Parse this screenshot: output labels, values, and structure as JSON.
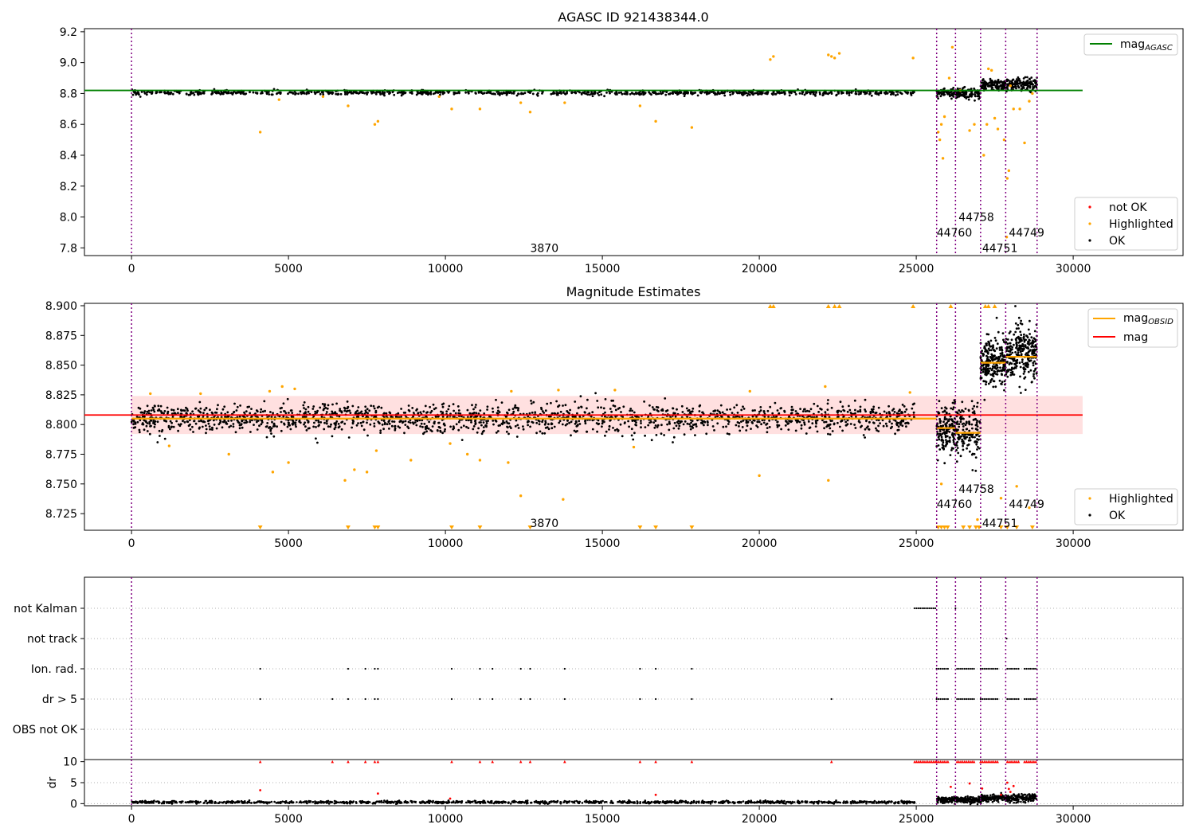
{
  "chart_data": [
    {
      "type": "scatter",
      "title": "AGASC ID 921438344.0",
      "xlabel": "",
      "ylabel": "",
      "xlim": [
        -1500,
        33500
      ],
      "ylim": [
        7.75,
        9.22
      ],
      "x_ticks": [
        0,
        5000,
        10000,
        15000,
        20000,
        25000,
        30000
      ],
      "y_ticks": [
        7.8,
        8.0,
        8.2,
        8.4,
        8.6,
        8.8,
        9.0,
        9.2
      ],
      "y_tick_labels": [
        "7.8",
        "8.0",
        "8.2",
        "8.4",
        "8.6",
        "8.8",
        "9.0",
        "9.2"
      ],
      "reference_line": {
        "name": "mag",
        "subscript": "AGASC",
        "y": 8.82,
        "x_range": [
          -1500,
          30300
        ],
        "color": "#008000"
      },
      "observation_boundaries": [
        0,
        25650,
        26250,
        27050,
        27850,
        28850
      ],
      "observation_labels": [
        {
          "text": "3870",
          "x": 12700,
          "y": 7.8
        },
        {
          "text": "44760",
          "x": 25650,
          "y": 7.9
        },
        {
          "text": "44758",
          "x": 26350,
          "y": 8.0
        },
        {
          "text": "44751",
          "x": 27100,
          "y": 7.8
        },
        {
          "text": "44749",
          "x": 27950,
          "y": 7.9
        }
      ],
      "series": [
        {
          "name": "not OK",
          "color": "#ff0000",
          "marker": "point"
        },
        {
          "name": "Highlighted",
          "color": "#ffa500",
          "marker": "point"
        },
        {
          "name": "OK",
          "color": "#000000",
          "marker": "point"
        }
      ],
      "segments": [
        {
          "x": [
            0,
            24950
          ],
          "center": 8.805,
          "spread": 0.015,
          "density": 900
        },
        {
          "x": [
            25650,
            27050
          ],
          "center": 8.8,
          "spread": 0.035,
          "density": 160
        },
        {
          "x": [
            27050,
            27850
          ],
          "center": 8.855,
          "spread": 0.035,
          "density": 120
        },
        {
          "x": [
            27850,
            28850
          ],
          "center": 8.86,
          "spread": 0.04,
          "density": 140
        }
      ],
      "highlighted_points": [
        [
          4100,
          8.55
        ],
        [
          6900,
          8.72
        ],
        [
          7750,
          8.6
        ],
        [
          7850,
          8.62
        ],
        [
          10200,
          8.7
        ],
        [
          11100,
          8.7
        ],
        [
          12400,
          8.74
        ],
        [
          12700,
          8.68
        ],
        [
          13800,
          8.74
        ],
        [
          16200,
          8.72
        ],
        [
          16700,
          8.62
        ],
        [
          17850,
          8.58
        ],
        [
          20350,
          9.02
        ],
        [
          20450,
          9.04
        ],
        [
          22200,
          9.05
        ],
        [
          22300,
          9.04
        ],
        [
          22400,
          9.03
        ],
        [
          22550,
          9.06
        ],
        [
          24900,
          9.03
        ],
        [
          25700,
          8.55
        ],
        [
          25750,
          8.5
        ],
        [
          25800,
          8.6
        ],
        [
          25850,
          8.38
        ],
        [
          25900,
          8.65
        ],
        [
          26050,
          8.9
        ],
        [
          26150,
          9.1
        ],
        [
          26400,
          8.82
        ],
        [
          26700,
          8.56
        ],
        [
          26850,
          8.6
        ],
        [
          27150,
          8.4
        ],
        [
          27250,
          8.6
        ],
        [
          27300,
          8.96
        ],
        [
          27400,
          8.95
        ],
        [
          27500,
          8.64
        ],
        [
          27600,
          8.57
        ],
        [
          27800,
          8.5
        ],
        [
          27900,
          8.25
        ],
        [
          27950,
          8.3
        ],
        [
          28000,
          8.85
        ],
        [
          28100,
          8.7
        ],
        [
          28300,
          8.7
        ],
        [
          28450,
          8.48
        ],
        [
          28600,
          8.75
        ],
        [
          28700,
          8.8
        ],
        [
          27880,
          7.87
        ],
        [
          4700,
          8.76
        ],
        [
          6100,
          8.78
        ],
        [
          9800,
          8.78
        ]
      ],
      "legend": [
        {
          "position": "top-right",
          "entries": [
            "mag"
          ]
        },
        {
          "position": "bottom-right",
          "entries": [
            "not OK",
            "Highlighted",
            "OK"
          ]
        }
      ]
    },
    {
      "type": "scatter",
      "title": "Magnitude Estimates",
      "xlabel": "",
      "ylabel": "",
      "xlim": [
        -1500,
        33500
      ],
      "ylim": [
        8.711,
        8.902
      ],
      "x_ticks": [
        0,
        5000,
        10000,
        15000,
        20000,
        25000,
        30000
      ],
      "y_ticks": [
        8.725,
        8.75,
        8.775,
        8.8,
        8.825,
        8.85,
        8.875,
        8.9
      ],
      "y_tick_labels": [
        "8.725",
        "8.750",
        "8.775",
        "8.800",
        "8.825",
        "8.850",
        "8.875",
        "8.900"
      ],
      "mag_line": {
        "name": "mag",
        "y": 8.808,
        "band": [
          8.792,
          8.824
        ],
        "x_range": [
          -1500,
          30300
        ],
        "color": "#ff0000"
      },
      "obsid_mags": {
        "name": "mag",
        "subscript": "OBSID",
        "color": "#ffa500",
        "segments": [
          {
            "x": [
              0,
              25650
            ],
            "y": 8.805
          },
          {
            "x": [
              25650,
              26250
            ],
            "y": 8.797
          },
          {
            "x": [
              26250,
              27050
            ],
            "y": 8.793
          },
          {
            "x": [
              27050,
              27850
            ],
            "y": 8.852
          },
          {
            "x": [
              27850,
              28850
            ],
            "y": 8.857
          }
        ]
      },
      "observation_boundaries": [
        0,
        25650,
        26250,
        27050,
        27850,
        28850
      ],
      "observation_labels": [
        {
          "text": "3870",
          "x": 12700,
          "y": 8.717
        },
        {
          "text": "44760",
          "x": 25650,
          "y": 8.733
        },
        {
          "text": "44758",
          "x": 26350,
          "y": 8.746
        },
        {
          "text": "44751",
          "x": 27100,
          "y": 8.717
        },
        {
          "text": "44749",
          "x": 27950,
          "y": 8.733
        }
      ],
      "segments": [
        {
          "x": [
            0,
            24950
          ],
          "center": 8.805,
          "spread": 0.012,
          "density": 1800
        },
        {
          "x": [
            25650,
            27050
          ],
          "center": 8.795,
          "spread": 0.022,
          "density": 320
        },
        {
          "x": [
            27050,
            27850
          ],
          "center": 8.852,
          "spread": 0.02,
          "density": 240
        },
        {
          "x": [
            27850,
            28850
          ],
          "center": 8.86,
          "spread": 0.024,
          "density": 280
        }
      ],
      "highlighted_points": [
        [
          4500,
          8.76
        ],
        [
          5000,
          8.768
        ],
        [
          6800,
          8.753
        ],
        [
          7100,
          8.762
        ],
        [
          7500,
          8.76
        ],
        [
          7800,
          8.778
        ],
        [
          8900,
          8.77
        ],
        [
          10150,
          8.784
        ],
        [
          10700,
          8.775
        ],
        [
          11100,
          8.77
        ],
        [
          12000,
          8.768
        ],
        [
          12400,
          8.74
        ],
        [
          13750,
          8.737
        ],
        [
          16000,
          8.781
        ],
        [
          20000,
          8.757
        ],
        [
          22200,
          8.753
        ],
        [
          25800,
          8.75
        ],
        [
          26950,
          8.72
        ],
        [
          27700,
          8.738
        ],
        [
          28200,
          8.748
        ],
        [
          28600,
          8.73
        ],
        [
          1200,
          8.782
        ],
        [
          3100,
          8.775
        ],
        [
          600,
          8.826
        ],
        [
          2200,
          8.826
        ],
        [
          4400,
          8.828
        ],
        [
          4800,
          8.832
        ],
        [
          5200,
          8.83
        ],
        [
          12100,
          8.828
        ],
        [
          13600,
          8.829
        ],
        [
          15400,
          8.829
        ],
        [
          19700,
          8.828
        ],
        [
          22100,
          8.832
        ],
        [
          24800,
          8.827
        ]
      ],
      "clipped_high": [
        20350,
        20450,
        22200,
        22400,
        22550,
        24900,
        26100,
        27200,
        27300,
        27500
      ],
      "clipped_low": [
        4100,
        6900,
        7750,
        7850,
        10200,
        11100,
        12700,
        16200,
        16700,
        17850,
        25700,
        25800,
        25900,
        26000,
        26500,
        26700,
        26900,
        27000,
        27700,
        27900,
        28200,
        28700
      ],
      "legend": [
        {
          "position": "top-right",
          "entries": [
            "mag",
            "mag"
          ]
        },
        {
          "position": "bottom-right",
          "entries": [
            "Highlighted",
            "OK"
          ]
        }
      ]
    },
    {
      "type": "scatter",
      "title": "",
      "xlabel": "",
      "ylabel": "",
      "xlim": [
        -1500,
        33500
      ],
      "flag_rows": [
        "not Kalman",
        "not track",
        "Ion. rad.",
        "dr > 5",
        "OBS not OK"
      ],
      "observation_boundaries": [
        0,
        25650,
        26250,
        27050,
        27850,
        28850
      ],
      "flags": {
        "not Kalman": {
          "ranges": [
            [
              24950,
              25650
            ]
          ],
          "points": [
            26250
          ]
        },
        "not track": {
          "ranges": [],
          "points": [
            27880
          ]
        },
        "Ion. rad.": {
          "ranges": [
            [
              25650,
              26050
            ],
            [
              26300,
              26850
            ],
            [
              27050,
              27600
            ],
            [
              27900,
              28300
            ],
            [
              28450,
              28850
            ]
          ],
          "points": [
            4100,
            6900,
            7450,
            7750,
            7850,
            10200,
            11100,
            11500,
            12400,
            12700,
            13800,
            16200,
            16700,
            17850
          ]
        },
        "dr > 5": {
          "ranges": [
            [
              25650,
              26050
            ],
            [
              26300,
              26850
            ],
            [
              27050,
              27600
            ],
            [
              27900,
              28300
            ],
            [
              28450,
              28850
            ]
          ],
          "points": [
            4100,
            6400,
            6900,
            7450,
            7750,
            7850,
            10200,
            11100,
            11500,
            12400,
            12700,
            13800,
            16200,
            16700,
            17850,
            22300
          ]
        },
        "OBS not OK": {
          "ranges": [],
          "points": []
        }
      }
    },
    {
      "type": "scatter",
      "title": "",
      "xlabel": "",
      "ylabel": "dr",
      "xlim": [
        -1500,
        33500
      ],
      "ylim": [
        -0.5,
        10.5
      ],
      "x_ticks": [
        0,
        5000,
        10000,
        15000,
        20000,
        25000,
        30000
      ],
      "y_ticks": [
        0,
        5,
        10
      ],
      "observation_boundaries": [
        0,
        25650,
        26250,
        27050,
        27850,
        28850
      ],
      "capped_value": 10,
      "capped_ranges": [
        [
          24950,
          25650
        ],
        [
          25650,
          26050
        ],
        [
          26300,
          26850
        ],
        [
          27050,
          27600
        ],
        [
          27900,
          28300
        ],
        [
          28450,
          28850
        ]
      ],
      "capped_points": [
        4100,
        6400,
        6900,
        7450,
        7750,
        7850,
        10200,
        11100,
        11500,
        12400,
        12700,
        13800,
        16200,
        16700,
        17850,
        22300
      ],
      "outlier_points": [
        [
          4100,
          3.2
        ],
        [
          7850,
          2.4
        ],
        [
          10150,
          1.2
        ],
        [
          16700,
          2.1
        ],
        [
          26100,
          4.0
        ],
        [
          26700,
          4.8
        ],
        [
          27100,
          3.6
        ],
        [
          27900,
          5.0
        ],
        [
          27950,
          3.5
        ],
        [
          28000,
          2.8
        ],
        [
          28100,
          4.2
        ],
        [
          27700,
          2.1
        ]
      ],
      "segments": [
        {
          "x": [
            0,
            24950
          ],
          "center": 0.35,
          "spread": 0.3,
          "density": 1200
        },
        {
          "x": [
            25650,
            27050
          ],
          "center": 0.9,
          "spread": 0.7,
          "density": 260
        },
        {
          "x": [
            27050,
            28850
          ],
          "center": 1.3,
          "spread": 0.9,
          "density": 300
        }
      ]
    }
  ]
}
